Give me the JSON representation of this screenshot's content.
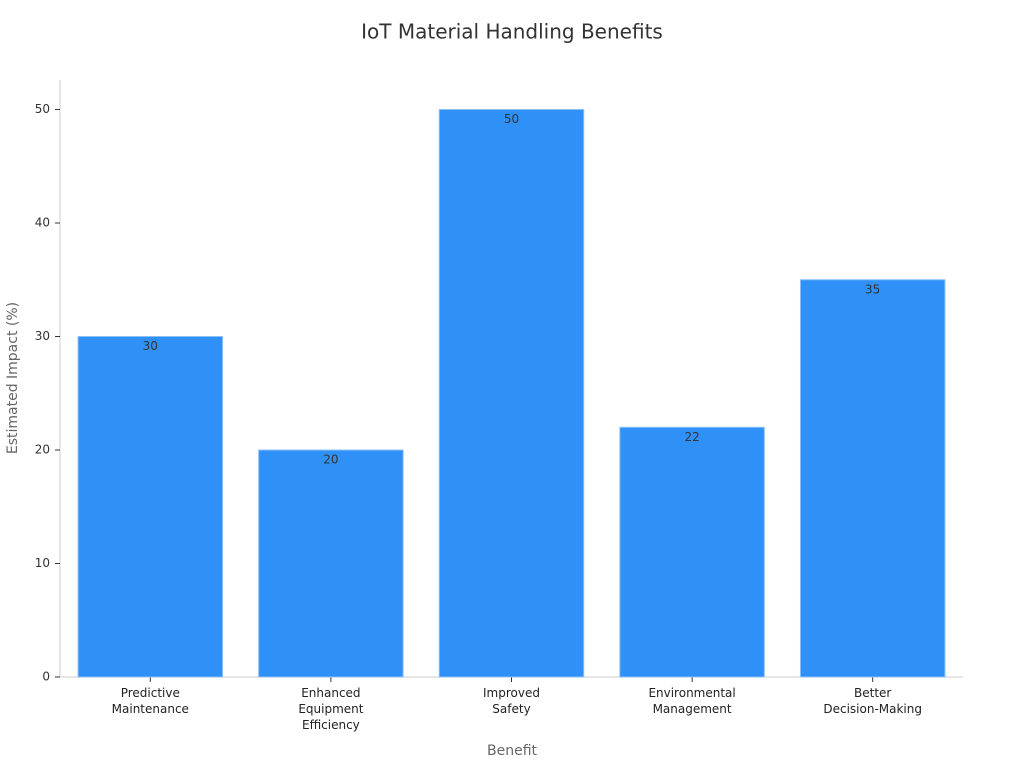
{
  "chart_data": {
    "type": "bar",
    "title": "IoT Material Handling Benefits",
    "x_label": "Benefit",
    "y_label": "Estimated Impact (%)",
    "categories": [
      "Predictive\nMaintenance",
      "Enhanced\nEquipment\nEfficiency",
      "Improved\nSafety",
      "Environmental\nManagement",
      "Better\nDecision-Making"
    ],
    "values": [
      30,
      20,
      50,
      22,
      35
    ],
    "color": "#2f91f7",
    "ylim": [
      0,
      52.6
    ],
    "yticks": [
      0,
      10,
      20,
      30,
      40,
      50
    ],
    "grid": false
  }
}
